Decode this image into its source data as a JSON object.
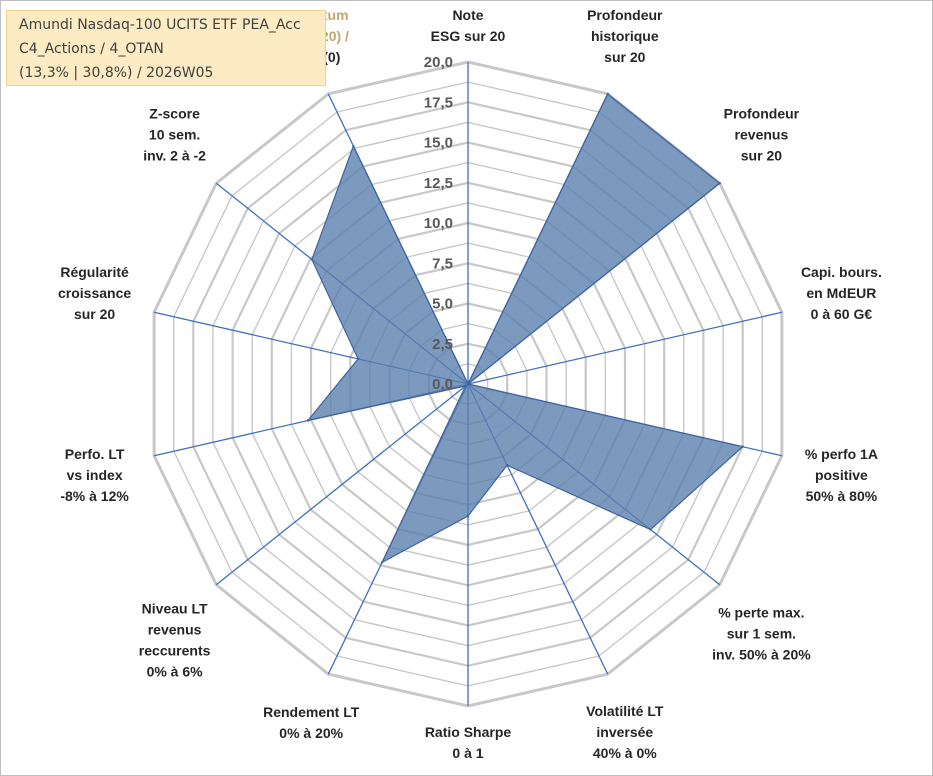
{
  "info_box": {
    "line1": "Amundi Nasdaq-100 UCITS ETF PEA_Acc",
    "line2": "C4_Actions / 4_OTAN",
    "line3": "(13,3% | 30,8%) / 2026W05"
  },
  "chart_data": {
    "type": "radar",
    "title": "",
    "rmax": 20,
    "ticks": [
      "0,0",
      "2,5",
      "5,0",
      "7,5",
      "10,0",
      "12,5",
      "15,0",
      "17,5",
      "20,0"
    ],
    "colors": {
      "fill": "#5b7fae",
      "stroke": "#3f63a1",
      "grid": "#c8c8c8",
      "spoke": "#3f6fbf"
    },
    "axes": [
      {
        "lines": [
          "Note",
          "ESG sur 20"
        ],
        "value": 0.0
      },
      {
        "lines": [
          "Profondeur",
          "historique",
          "sur 20"
        ],
        "value": 20.0
      },
      {
        "lines": [
          "Profondeur",
          "revenus",
          "sur 20"
        ],
        "value": 20.0
      },
      {
        "lines": [
          "Capi. bours.",
          "en MdEUR",
          "0 à 60 G€"
        ],
        "value": 0.0
      },
      {
        "lines": [
          "% perfo 1A",
          "positive",
          "50% à 80%"
        ],
        "value": 17.5
      },
      {
        "lines": [
          "% perte max.",
          "sur 1 sem.",
          "inv. 50% à 20%"
        ],
        "value": 14.5
      },
      {
        "lines": [
          "Volatilité LT",
          "inversée",
          "40% à 0%"
        ],
        "value": 5.6
      },
      {
        "lines": [
          "Ratio Sharpe",
          "0 à 1"
        ],
        "value": 8.2
      },
      {
        "lines": [
          "Rendement LT",
          "0% à 20%"
        ],
        "value": 12.3
      },
      {
        "lines": [
          "Niveau LT",
          "revenus",
          "reccurents",
          "0% à 6%"
        ],
        "value": 0.2
      },
      {
        "lines": [
          "Perfo. LT",
          "vs index",
          "-8% à 12%"
        ],
        "value": 10.2
      },
      {
        "lines": [
          "Régularité",
          "croissance",
          "sur 20"
        ],
        "value": 7.0
      },
      {
        "lines": [
          "Z-score",
          "10 sem.",
          "inv. 2 à -2"
        ],
        "value": 12.4
      },
      {
        "lines": [
          "Momentum",
          "Achat (20) /",
          "Vente (0)"
        ],
        "value": 16.4
      }
    ]
  }
}
